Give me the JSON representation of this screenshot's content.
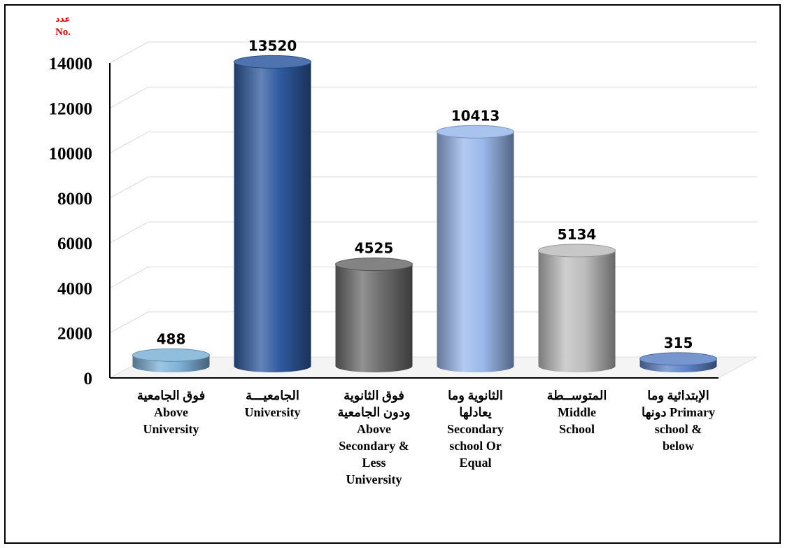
{
  "chart_data": {
    "type": "bar",
    "ylabel_ar": "عدد",
    "ylabel_en": "No.",
    "ylim": [
      0,
      14000
    ],
    "yticks": [
      "0",
      "2000",
      "4000",
      "6000",
      "8000",
      "10000",
      "12000",
      "14000"
    ],
    "categories": [
      "فوق الجامعية\nAbove\nUniversity",
      "الجامعيـــة\nUniversity",
      "فوق الثانوية\nودون الجامعية\nAbove\nSecondary &\nLess\nUniversity",
      "الثانوية وما\nيعادلها\nSecondary\nschool Or\nEqual",
      "المتوســطة\nMiddle\nSchool",
      "الإبتدائية وما\nدونها Primary\nschool &\nbelow"
    ],
    "values": [
      488,
      13520,
      4525,
      10413,
      5134,
      315
    ],
    "data_labels": [
      "488",
      "13520",
      "4525",
      "10413",
      "5134",
      "315"
    ],
    "bar_colors": [
      "#7fb2d8",
      "#2f5aa0",
      "#6d6d6d",
      "#9ab8ec",
      "#bdbdbd",
      "#5f84c8"
    ],
    "grid": true,
    "legend": "none"
  }
}
